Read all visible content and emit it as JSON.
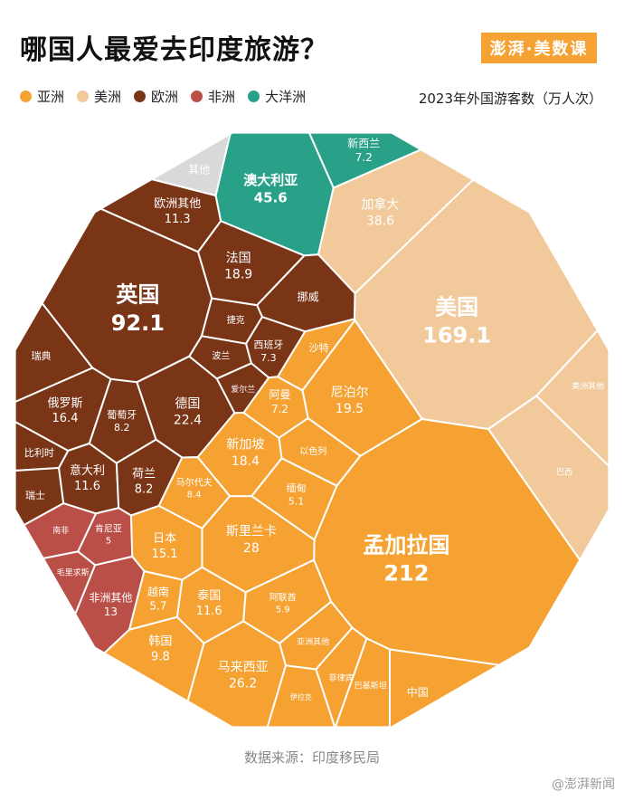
{
  "header": {
    "title": "哪国人最爱去印度旅游？",
    "brand": "澎湃·美数课",
    "subtitle": "2023年外国游客数（万人次）"
  },
  "legend": [
    {
      "name": "亚洲",
      "color": "#f6a232"
    },
    {
      "name": "美洲",
      "color": "#f1c99a"
    },
    {
      "name": "欧洲",
      "color": "#7a3517"
    },
    {
      "name": "非洲",
      "color": "#b94f46"
    },
    {
      "name": "大洋洲",
      "color": "#29a189"
    }
  ],
  "footer": {
    "source": "数据来源：印度移民局",
    "watermark": "@澎湃新闻"
  },
  "chart_data": {
    "type": "voronoi-treemap",
    "unit": "万人次",
    "series": [
      {
        "name": "孟加拉国",
        "value": 212,
        "group": "亚洲"
      },
      {
        "name": "美国",
        "value": 169.1,
        "group": "美洲"
      },
      {
        "name": "英国",
        "value": 92.1,
        "group": "欧洲"
      },
      {
        "name": "澳大利亚",
        "value": 45.6,
        "group": "大洋洲"
      },
      {
        "name": "加拿大",
        "value": 38.6,
        "group": "美洲"
      },
      {
        "name": "斯里兰卡",
        "value": 28,
        "group": "亚洲"
      },
      {
        "name": "马来西亚",
        "value": 26.2,
        "group": "亚洲"
      },
      {
        "name": "德国",
        "value": 22.4,
        "group": "欧洲"
      },
      {
        "name": "尼泊尔",
        "value": 19.5,
        "group": "亚洲"
      },
      {
        "name": "法国",
        "value": 18.9,
        "group": "欧洲"
      },
      {
        "name": "新加坡",
        "value": 18.4,
        "group": "亚洲"
      },
      {
        "name": "俄罗斯",
        "value": 16.4,
        "group": "欧洲"
      },
      {
        "name": "日本",
        "value": 15.1,
        "group": "亚洲"
      },
      {
        "name": "非洲其他",
        "value": 13,
        "group": "非洲"
      },
      {
        "name": "意大利",
        "value": 11.6,
        "group": "欧洲"
      },
      {
        "name": "泰国",
        "value": 11.6,
        "group": "亚洲"
      },
      {
        "name": "欧洲其他",
        "value": 11.3,
        "group": "欧洲"
      },
      {
        "name": "韩国",
        "value": 9.8,
        "group": "亚洲"
      },
      {
        "name": "马尔代夫",
        "value": 8.4,
        "group": "亚洲"
      },
      {
        "name": "葡萄牙",
        "value": 8.2,
        "group": "欧洲"
      },
      {
        "name": "荷兰",
        "value": 8.2,
        "group": "欧洲"
      },
      {
        "name": "西班牙",
        "value": 7.3,
        "group": "欧洲"
      },
      {
        "name": "阿曼",
        "value": 7.2,
        "group": "亚洲"
      },
      {
        "name": "新西兰",
        "value": 7.2,
        "group": "大洋洲"
      },
      {
        "name": "阿联酋",
        "value": 5.9,
        "group": "亚洲"
      },
      {
        "name": "越南",
        "value": 5.7,
        "group": "亚洲"
      },
      {
        "name": "缅甸",
        "value": 5.1,
        "group": "亚洲"
      },
      {
        "name": "肯尼亚",
        "value": 5,
        "group": "非洲"
      },
      {
        "name": "沙特",
        "value": null,
        "group": "亚洲"
      },
      {
        "name": "以色列",
        "value": null,
        "group": "亚洲"
      },
      {
        "name": "亚洲其他",
        "value": null,
        "group": "亚洲"
      },
      {
        "name": "菲律宾",
        "value": null,
        "group": "亚洲"
      },
      {
        "name": "伊拉克",
        "value": null,
        "group": "亚洲"
      },
      {
        "name": "巴基斯坦",
        "value": null,
        "group": "亚洲"
      },
      {
        "name": "中国",
        "value": null,
        "group": "亚洲"
      },
      {
        "name": "巴西",
        "value": null,
        "group": "美洲"
      },
      {
        "name": "美洲其他",
        "value": null,
        "group": "美洲"
      },
      {
        "name": "挪威",
        "value": null,
        "group": "欧洲"
      },
      {
        "name": "捷克",
        "value": null,
        "group": "欧洲"
      },
      {
        "name": "波兰",
        "value": null,
        "group": "欧洲"
      },
      {
        "name": "爱尔兰",
        "value": null,
        "group": "欧洲"
      },
      {
        "name": "瑞典",
        "value": null,
        "group": "欧洲"
      },
      {
        "name": "比利时",
        "value": null,
        "group": "欧洲"
      },
      {
        "name": "瑞士",
        "value": null,
        "group": "欧洲"
      },
      {
        "name": "南非",
        "value": null,
        "group": "非洲"
      },
      {
        "name": "毛里求斯",
        "value": null,
        "group": "非洲"
      },
      {
        "name": "其他",
        "value": null,
        "group": "其他"
      }
    ]
  }
}
